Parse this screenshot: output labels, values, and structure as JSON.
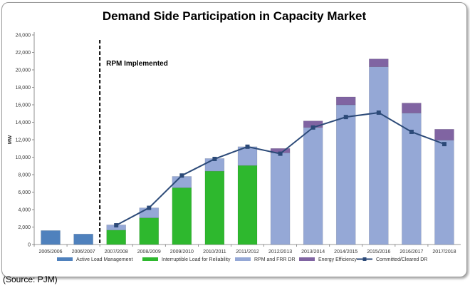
{
  "chart_data": {
    "type": "bar",
    "stacked": true,
    "title": "Demand Side Participation in Capacity Market",
    "ylabel": "MW",
    "xlabel": "",
    "ylim": [
      0,
      24000
    ],
    "yticks": [
      0,
      2000,
      4000,
      6000,
      8000,
      10000,
      12000,
      14000,
      16000,
      18000,
      20000,
      22000,
      24000
    ],
    "ytick_labels": [
      "0",
      "2,000",
      "4,000",
      "6,000",
      "8,000",
      "10,000",
      "12,000",
      "14,000",
      "16,000",
      "18,000",
      "20,000",
      "22,000",
      "24,000"
    ],
    "categories": [
      "2005/2006",
      "2006/2007",
      "2007/2008",
      "2008/2009",
      "2009/2010",
      "2010/2011",
      "2011/2012",
      "2012/2013",
      "2013/2014",
      "2014/2015",
      "2015/2016",
      "2016/2017",
      "2017/2018"
    ],
    "series": [
      {
        "name": "Active Load Management",
        "color": "#4f81bd",
        "values": [
          1600,
          1200,
          0,
          0,
          0,
          0,
          0,
          0,
          0,
          0,
          0,
          0,
          0
        ]
      },
      {
        "name": "Interruptible Load for Reliability",
        "color": "#2eb82e",
        "values": [
          0,
          0,
          1650,
          3050,
          6500,
          8400,
          9050,
          0,
          0,
          0,
          0,
          0,
          0
        ]
      },
      {
        "name": "RPM and FRR DR",
        "color": "#95a8d6",
        "values": [
          0,
          0,
          600,
          1150,
          1300,
          1450,
          2150,
          10500,
          13400,
          16000,
          20350,
          15050,
          11950
        ]
      },
      {
        "name": "Energy Efficiency",
        "color": "#8064a2",
        "values": [
          0,
          0,
          0,
          0,
          0,
          0,
          0,
          500,
          750,
          900,
          900,
          1150,
          1250
        ]
      }
    ],
    "line_series": {
      "name": "Committed/Cleared DR",
      "color": "#2c4a78",
      "start_index": 2,
      "values": [
        2200,
        4200,
        7900,
        9800,
        11200,
        10400,
        13400,
        14600,
        15100,
        12900,
        11500
      ]
    },
    "annotations": [
      {
        "text": "RPM Implemented",
        "marker_before_category": "2007/2008"
      }
    ],
    "legend": {
      "position": "bottom",
      "entries": [
        "Active Load Management",
        "Interruptible Load for Reliability",
        "RPM and FRR DR",
        "Energy Efficiency",
        "Committed/Cleared DR"
      ]
    },
    "grid": false
  },
  "source_text": "(Source: PJM)"
}
